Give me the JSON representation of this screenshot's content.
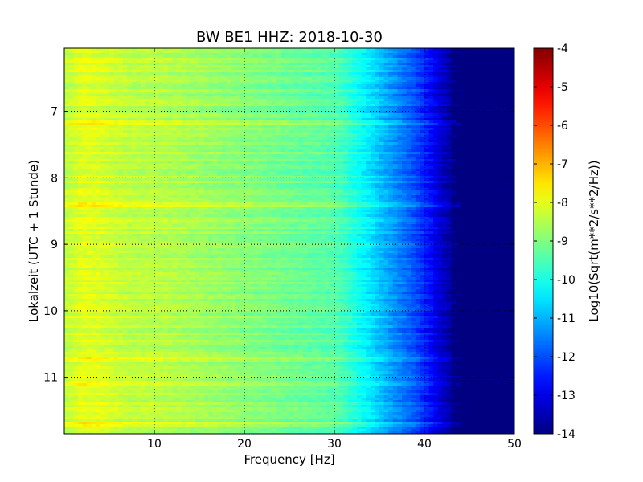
{
  "chart_data": {
    "type": "heatmap",
    "title": "BW BE1 HHZ: 2018-10-30",
    "xlabel": "Frequency [Hz]",
    "ylabel": "Lokalzeit (UTC + 1 Stunde)",
    "xlim": [
      0,
      50
    ],
    "ylim": [
      11.85,
      6.05
    ],
    "y_inverted": true,
    "x_ticks": [
      "10",
      "20",
      "30",
      "40",
      "50"
    ],
    "x_tick_values": [
      10,
      20,
      30,
      40,
      50
    ],
    "y_ticks": [
      "7",
      "8",
      "9",
      "10",
      "11"
    ],
    "y_tick_values": [
      7,
      8,
      9,
      10,
      11
    ],
    "grid": true,
    "colormap": "jet",
    "colorbar": {
      "label": "Log10(Sqrt(m**2/s**2/Hz))",
      "range": [
        -14,
        -4
      ],
      "ticks": [
        "-4",
        "-5",
        "-6",
        "-7",
        "-8",
        "-9",
        "-10",
        "-11",
        "-12",
        "-13",
        "-14"
      ],
      "tick_values": [
        -4,
        -5,
        -6,
        -7,
        -8,
        -9,
        -10,
        -11,
        -12,
        -13,
        -14
      ]
    },
    "spectrum_profile": {
      "frequency_hz": [
        0,
        2,
        4,
        6,
        8,
        10,
        12,
        14,
        16,
        18,
        20,
        22,
        24,
        26,
        28,
        30,
        31,
        32,
        33,
        34,
        35,
        36,
        37,
        38,
        39,
        40,
        41,
        42,
        43,
        44,
        45,
        50
      ],
      "log10_amplitude": [
        -8.4,
        -8.0,
        -8.1,
        -8.3,
        -8.4,
        -8.4,
        -8.5,
        -8.6,
        -8.7,
        -8.8,
        -8.9,
        -9.0,
        -9.1,
        -9.2,
        -9.3,
        -9.4,
        -9.6,
        -9.9,
        -10.2,
        -10.5,
        -10.8,
        -11.1,
        -11.4,
        -11.7,
        -12.0,
        -12.4,
        -12.8,
        -13.3,
        -13.7,
        -14.0,
        -14.0,
        -14.0
      ]
    },
    "bright_bands_hour": [
      7.17,
      8.4,
      10.72,
      11.1,
      11.7
    ]
  }
}
